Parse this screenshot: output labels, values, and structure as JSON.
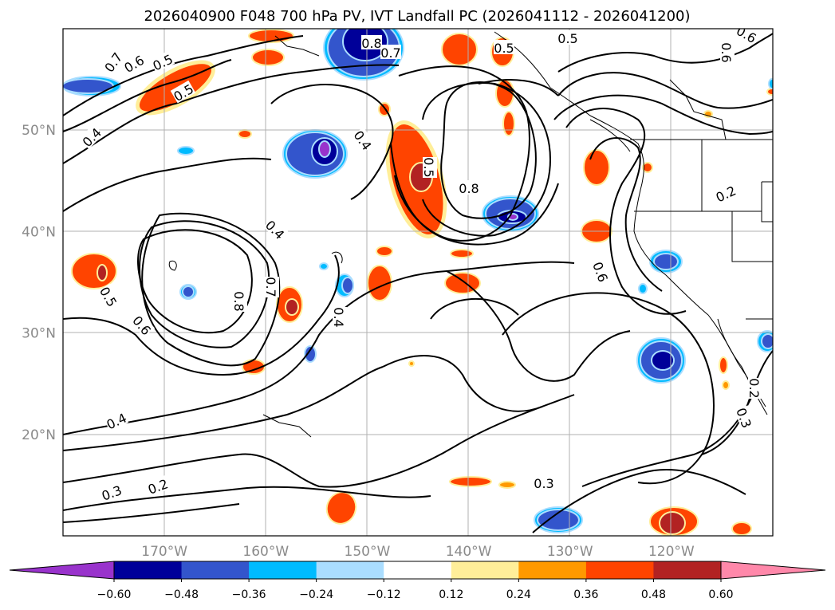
{
  "title": "2026040900 F048 700 hPa PV, IVT Landfall PC (2026041112 - 2026041200)",
  "map": {
    "lon_range": [
      -180,
      -110
    ],
    "lat_range": [
      10,
      60
    ],
    "lat_ticks": [
      {
        "value": 50,
        "label": "50°N"
      },
      {
        "value": 40,
        "label": "40°N"
      },
      {
        "value": 30,
        "label": "30°N"
      },
      {
        "value": 20,
        "label": "20°N"
      }
    ],
    "lon_ticks": [
      {
        "value": -170,
        "label": "170°W"
      },
      {
        "value": -160,
        "label": "160°W"
      },
      {
        "value": -150,
        "label": "150°W"
      },
      {
        "value": -140,
        "label": "140°W"
      },
      {
        "value": -130,
        "label": "130°W"
      },
      {
        "value": -120,
        "label": "120°W"
      }
    ],
    "gridlines": true,
    "contour_labels": [
      "0.7",
      "0.6",
      "0.5",
      "0.5",
      "0.4",
      "0.4",
      "0.8",
      "0.7",
      "0.5",
      "0.6",
      "0.5",
      "0.8",
      "0.4",
      "0.5",
      "0.6",
      "0.8",
      "0.7",
      "0.4",
      "0.6",
      "0.5",
      "0.6",
      "0.4",
      "0.3",
      "0.2",
      "0.3",
      "0.2",
      "0.2",
      "0.3",
      "0.2"
    ]
  },
  "colorbar": {
    "ticks": [
      "−0.60",
      "−0.48",
      "−0.36",
      "−0.24",
      "−0.12",
      "0.12",
      "0.24",
      "0.36",
      "0.48",
      "0.60"
    ],
    "colors": [
      "#9933cc",
      "#000099",
      "#3355cc",
      "#00bbff",
      "#aaddff",
      "#ffffff",
      "#ffee99",
      "#ff9900",
      "#ff4400",
      "#b22222",
      "#ff88aa"
    ],
    "extend": "both"
  },
  "fill_colors": {
    "neg1": "#aaddff",
    "neg2": "#00bbff",
    "neg3": "#3355cc",
    "neg4": "#000099",
    "neg5": "#9933cc",
    "pos1": "#ffee99",
    "pos2": "#ff9900",
    "pos3": "#ff4400",
    "pos4": "#b22222"
  }
}
